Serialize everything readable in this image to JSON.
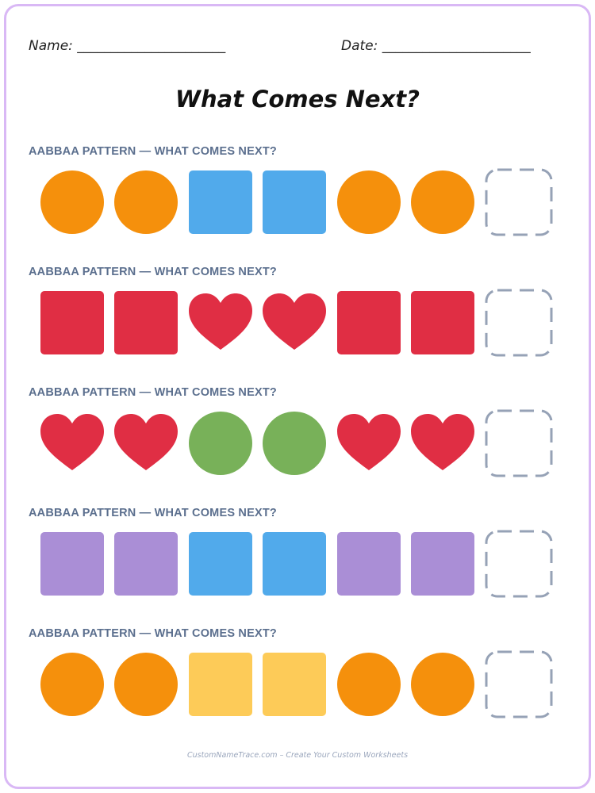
{
  "header": {
    "name_label": "Name: ______________________",
    "date_label": "Date: ______________________"
  },
  "title": "What Comes Next?",
  "colors": {
    "orange": "#f5900c",
    "blue": "#51aaeb",
    "red": "#e02e44",
    "green": "#78b159",
    "purple": "#aa8ed6",
    "yellow": "#fdcb58",
    "answer_box": "#96a2b6",
    "border": "#d9b8f5"
  },
  "rows": [
    {
      "label": "AABBAA PATTERN — WHAT COMES NEXT?",
      "shapes": [
        {
          "shape": "circle",
          "color": "orange"
        },
        {
          "shape": "circle",
          "color": "orange"
        },
        {
          "shape": "square",
          "color": "blue"
        },
        {
          "shape": "square",
          "color": "blue"
        },
        {
          "shape": "circle",
          "color": "orange"
        },
        {
          "shape": "circle",
          "color": "orange"
        }
      ]
    },
    {
      "label": "AABBAA PATTERN — WHAT COMES NEXT?",
      "shapes": [
        {
          "shape": "square",
          "color": "red"
        },
        {
          "shape": "square",
          "color": "red"
        },
        {
          "shape": "heart",
          "color": "red"
        },
        {
          "shape": "heart",
          "color": "red"
        },
        {
          "shape": "square",
          "color": "red"
        },
        {
          "shape": "square",
          "color": "red"
        }
      ]
    },
    {
      "label": "AABBAA PATTERN — WHAT COMES NEXT?",
      "shapes": [
        {
          "shape": "heart",
          "color": "red"
        },
        {
          "shape": "heart",
          "color": "red"
        },
        {
          "shape": "circle",
          "color": "green"
        },
        {
          "shape": "circle",
          "color": "green"
        },
        {
          "shape": "heart",
          "color": "red"
        },
        {
          "shape": "heart",
          "color": "red"
        }
      ]
    },
    {
      "label": "AABBAA PATTERN — WHAT COMES NEXT?",
      "shapes": [
        {
          "shape": "square",
          "color": "purple"
        },
        {
          "shape": "square",
          "color": "purple"
        },
        {
          "shape": "square",
          "color": "blue"
        },
        {
          "shape": "square",
          "color": "blue"
        },
        {
          "shape": "square",
          "color": "purple"
        },
        {
          "shape": "square",
          "color": "purple"
        }
      ]
    },
    {
      "label": "AABBAA PATTERN — WHAT COMES NEXT?",
      "shapes": [
        {
          "shape": "circle",
          "color": "orange"
        },
        {
          "shape": "circle",
          "color": "orange"
        },
        {
          "shape": "square",
          "color": "yellow"
        },
        {
          "shape": "square",
          "color": "yellow"
        },
        {
          "shape": "circle",
          "color": "orange"
        },
        {
          "shape": "circle",
          "color": "orange"
        }
      ]
    }
  ],
  "footer": "CustomNameTrace.com – Create Your Custom Worksheets"
}
